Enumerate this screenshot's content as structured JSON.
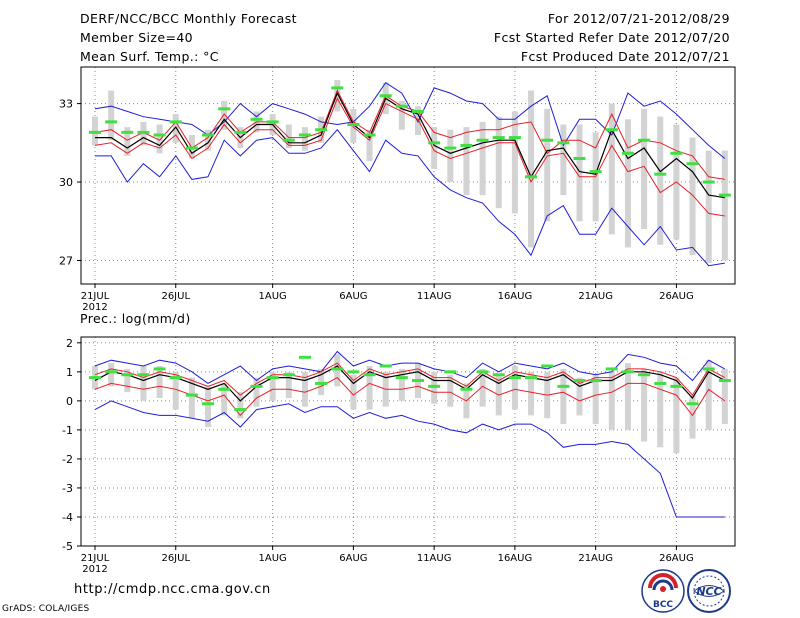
{
  "header": {
    "title": "DERF/NCC/BCC Monthly Forecast",
    "member_size": "Member Size=40",
    "variable": "Mean Surf. Temp.: °C",
    "period": "For 2012/07/21-2012/08/29",
    "fcst_started": "Fcst Started Refer Date 2012/07/20",
    "fcst_produced": "Fcst Produced Date 2012/07/21"
  },
  "footer": {
    "url": "http://cmdp.ncc.cma.gov.cn",
    "credit": "GrADS: COLA/IGES",
    "logo_bcc": "BCC",
    "logo_ncc": "NCC"
  },
  "colors": {
    "envelope": "#1f1fd6",
    "inner": "#e8202a",
    "mean": "#000000",
    "obs": "#3fe03f",
    "bar": "#d3d3d3",
    "grid": "#888888"
  },
  "chart_data": [
    {
      "type": "line",
      "title": "Mean Surf. Temp.: °C",
      "ylabel": "Mean Surf. Temp.: °C",
      "ylim": [
        26.1,
        34.4
      ],
      "yticks": [
        27,
        30,
        33
      ],
      "ytick_labels": [
        "27",
        "30",
        "33"
      ],
      "grid": true,
      "x_day_offsets": [
        0,
        5,
        11,
        16,
        21,
        26,
        31,
        36
      ],
      "x_tick_labels": [
        "21JUL",
        "26JUL",
        "1AUG",
        "6AUG",
        "11AUG",
        "16AUG",
        "21AUG",
        "26AUG"
      ],
      "x_year_label": "2012",
      "n_days": 39,
      "series": [
        {
          "name": "ensemble max",
          "color": "#1f1fd6",
          "values": [
            32.8,
            32.9,
            32.7,
            32.5,
            32.4,
            32.3,
            32.2,
            31.8,
            32.3,
            33.0,
            32.5,
            33.0,
            32.8,
            32.6,
            32.3,
            32.2,
            32.3,
            32.9,
            33.8,
            33.4,
            32.3,
            33.6,
            33.4,
            33.1,
            33.0,
            32.4,
            32.4,
            32.9,
            33.3,
            31.4,
            32.4,
            32.4,
            31.8,
            33.4,
            32.9,
            33.1,
            32.6,
            32.0,
            31.4,
            30.9
          ]
        },
        {
          "name": "inner upper",
          "color": "#e8202a",
          "values": [
            31.9,
            32.0,
            31.6,
            31.9,
            31.6,
            32.3,
            31.3,
            31.7,
            32.6,
            31.9,
            32.3,
            32.3,
            31.7,
            31.7,
            31.9,
            33.5,
            32.3,
            31.9,
            33.3,
            32.9,
            32.7,
            31.9,
            31.7,
            31.9,
            32.0,
            32.0,
            32.2,
            32.3,
            31.1,
            31.6,
            31.6,
            31.3,
            32.6,
            31.3,
            31.6,
            31.5,
            31.2,
            31.0,
            30.2,
            30.1
          ]
        },
        {
          "name": "ensemble mean",
          "color": "#000000",
          "values": [
            31.7,
            31.7,
            31.3,
            31.7,
            31.4,
            32.1,
            31.1,
            31.5,
            32.4,
            31.7,
            32.2,
            32.2,
            31.5,
            31.5,
            31.8,
            33.4,
            32.2,
            31.7,
            33.2,
            32.8,
            32.6,
            31.4,
            31.1,
            31.3,
            31.5,
            31.6,
            31.6,
            30.2,
            31.2,
            31.3,
            30.4,
            30.3,
            32.0,
            30.9,
            31.3,
            30.4,
            30.9,
            30.4,
            29.5,
            29.4
          ]
        },
        {
          "name": "inner lower",
          "color": "#e8202a",
          "values": [
            31.4,
            31.5,
            31.1,
            31.5,
            31.3,
            31.8,
            30.9,
            31.3,
            32.2,
            31.5,
            32.0,
            32.0,
            31.4,
            31.4,
            31.6,
            33.2,
            32.1,
            31.6,
            33.0,
            32.7,
            32.4,
            31.2,
            30.9,
            31.1,
            31.3,
            31.5,
            31.5,
            30.0,
            31.0,
            31.1,
            30.2,
            30.2,
            31.4,
            30.4,
            30.6,
            29.6,
            30.0,
            29.5,
            28.8,
            28.7
          ]
        },
        {
          "name": "ensemble min",
          "color": "#1f1fd6",
          "values": [
            31.0,
            31.0,
            30.0,
            30.7,
            30.2,
            31.0,
            30.1,
            30.2,
            31.6,
            31.0,
            31.6,
            31.7,
            31.1,
            31.1,
            31.3,
            32.0,
            31.2,
            30.4,
            31.6,
            31.1,
            31.0,
            30.2,
            29.7,
            29.4,
            29.2,
            28.5,
            28.0,
            27.2,
            28.7,
            29.1,
            28.0,
            28.0,
            29.0,
            28.3,
            27.6,
            28.3,
            27.4,
            27.5,
            26.8,
            26.9
          ]
        }
      ],
      "observed_values": [
        31.9,
        32.3,
        31.9,
        31.9,
        31.8,
        32.3,
        31.3,
        31.8,
        32.8,
        31.9,
        32.4,
        32.3,
        31.6,
        31.8,
        32.0,
        33.6,
        32.2,
        31.8,
        33.3,
        32.9,
        32.7,
        31.5,
        31.3,
        31.4,
        31.6,
        31.7,
        31.7,
        30.2,
        31.6,
        31.5,
        30.9,
        30.4,
        32.0,
        31.1,
        31.6,
        30.3,
        31.1,
        30.7,
        30.0,
        29.5
      ],
      "bar_ranges": [
        [
          31.4,
          32.5
        ],
        [
          31.6,
          33.5
        ],
        [
          31.0,
          32.1
        ],
        [
          31.4,
          32.3
        ],
        [
          31.1,
          32.2
        ],
        [
          31.5,
          32.6
        ],
        [
          30.9,
          31.8
        ],
        [
          31.2,
          32.0
        ],
        [
          32.0,
          33.1
        ],
        [
          31.3,
          32.1
        ],
        [
          31.9,
          32.7
        ],
        [
          31.8,
          32.6
        ],
        [
          31.3,
          32.2
        ],
        [
          31.2,
          32.1
        ],
        [
          31.5,
          32.5
        ],
        [
          32.7,
          33.9
        ],
        [
          31.5,
          32.8
        ],
        [
          30.8,
          32.0
        ],
        [
          32.6,
          33.8
        ],
        [
          32.0,
          33.1
        ],
        [
          31.8,
          32.9
        ],
        [
          30.5,
          32.1
        ],
        [
          30.0,
          32.0
        ],
        [
          29.5,
          32.1
        ],
        [
          29.5,
          32.3
        ],
        [
          29.0,
          32.5
        ],
        [
          28.8,
          32.7
        ],
        [
          27.5,
          33.5
        ],
        [
          28.5,
          32.8
        ],
        [
          29.5,
          32.2
        ],
        [
          28.5,
          32.2
        ],
        [
          28.5,
          31.9
        ],
        [
          28.0,
          33.0
        ],
        [
          27.5,
          32.4
        ],
        [
          28.2,
          32.8
        ],
        [
          27.6,
          32.5
        ],
        [
          27.8,
          32.2
        ],
        [
          27.2,
          31.7
        ],
        [
          26.9,
          31.2
        ],
        [
          27.0,
          31.2
        ]
      ]
    },
    {
      "type": "line",
      "title": "Prec.: log(mm/d)",
      "ylabel": "Prec.: log(mm/d)",
      "ylim": [
        -5.0,
        2.2
      ],
      "yticks": [
        -5,
        -4,
        -3,
        -2,
        -1,
        0,
        1,
        2
      ],
      "ytick_labels": [
        "-5",
        "-4",
        "-3",
        "-2",
        "-1",
        "0",
        "1",
        "2"
      ],
      "grid": true,
      "x_day_offsets": [
        0,
        5,
        11,
        16,
        21,
        26,
        31,
        36
      ],
      "x_tick_labels": [
        "21JUL",
        "26JUL",
        "1AUG",
        "6AUG",
        "11AUG",
        "16AUG",
        "21AUG",
        "26AUG"
      ],
      "x_year_label": "2012",
      "n_days": 39,
      "series": [
        {
          "name": "ensemble max",
          "color": "#1f1fd6",
          "values": [
            1.2,
            1.4,
            1.3,
            1.2,
            1.4,
            1.3,
            1.0,
            0.6,
            0.9,
            1.2,
            0.7,
            1.1,
            1.2,
            1.1,
            1.0,
            1.7,
            1.2,
            1.4,
            1.2,
            1.3,
            1.3,
            1.1,
            1.0,
            0.8,
            1.3,
            1.0,
            1.3,
            1.2,
            1.1,
            1.3,
            1.0,
            0.9,
            1.0,
            1.6,
            1.5,
            1.3,
            1.2,
            0.7,
            1.4,
            1.1
          ]
        },
        {
          "name": "inner upper",
          "color": "#e8202a",
          "values": [
            0.9,
            1.1,
            1.0,
            0.8,
            1.0,
            0.9,
            0.7,
            0.5,
            0.7,
            0.2,
            0.6,
            0.9,
            0.9,
            0.8,
            1.0,
            1.3,
            0.7,
            1.1,
            0.9,
            1.0,
            1.1,
            0.8,
            0.8,
            0.5,
            1.0,
            0.7,
            1.0,
            0.9,
            0.8,
            1.0,
            0.6,
            0.8,
            0.8,
            1.1,
            1.1,
            1.0,
            0.8,
            0.2,
            1.1,
            0.8
          ]
        },
        {
          "name": "ensemble mean",
          "color": "#000000",
          "values": [
            0.7,
            1.0,
            0.9,
            0.7,
            0.9,
            0.8,
            0.6,
            0.4,
            0.6,
            0.0,
            0.5,
            0.8,
            0.8,
            0.7,
            0.9,
            1.2,
            0.6,
            1.0,
            0.8,
            0.9,
            1.0,
            0.7,
            0.7,
            0.4,
            0.9,
            0.6,
            0.9,
            0.8,
            0.7,
            0.9,
            0.5,
            0.7,
            0.7,
            1.0,
            1.0,
            0.9,
            0.7,
            0.1,
            1.0,
            0.7
          ]
        },
        {
          "name": "inner lower",
          "color": "#e8202a",
          "values": [
            0.4,
            0.6,
            0.5,
            0.4,
            0.5,
            0.4,
            0.2,
            0.0,
            0.2,
            -0.5,
            0.1,
            0.4,
            0.4,
            0.3,
            0.5,
            0.8,
            0.2,
            0.6,
            0.4,
            0.4,
            0.5,
            0.3,
            0.3,
            0.0,
            0.5,
            0.2,
            0.4,
            0.3,
            0.2,
            0.3,
            0.0,
            0.2,
            0.3,
            0.6,
            0.6,
            0.4,
            0.2,
            -0.5,
            0.4,
            0.0
          ]
        },
        {
          "name": "ensemble min",
          "color": "#1f1fd6",
          "values": [
            -0.3,
            0.0,
            -0.2,
            -0.4,
            -0.5,
            -0.5,
            -0.6,
            -0.7,
            -0.4,
            -0.9,
            -0.3,
            -0.2,
            -0.1,
            -0.4,
            -0.2,
            -0.2,
            -0.6,
            -0.4,
            -0.6,
            -0.5,
            -0.7,
            -0.8,
            -1.0,
            -1.1,
            -0.8,
            -1.0,
            -0.8,
            -0.8,
            -1.1,
            -1.6,
            -1.5,
            -1.5,
            -1.4,
            -1.5,
            -2.0,
            -2.5,
            -4.0,
            -4.0,
            -4.0,
            -4.0
          ]
        }
      ],
      "observed_values": [
        0.8,
        1.0,
        0.9,
        0.9,
        1.1,
        0.8,
        0.2,
        -0.1,
        0.4,
        -0.3,
        0.5,
        0.8,
        0.9,
        1.5,
        0.6,
        1.1,
        1.0,
        0.9,
        1.2,
        0.8,
        0.7,
        0.5,
        1.0,
        0.4,
        1.0,
        0.9,
        0.8,
        0.8,
        1.2,
        0.5,
        0.7,
        0.7,
        1.1,
        1.0,
        0.9,
        0.6,
        0.5,
        -0.1,
        1.1,
        0.7
      ],
      "bar_ranges": [
        [
          0.4,
          1.2
        ],
        [
          0.5,
          1.3
        ],
        [
          0.3,
          1.1
        ],
        [
          0.0,
          1.2
        ],
        [
          0.1,
          1.2
        ],
        [
          -0.3,
          1.0
        ],
        [
          -0.6,
          0.8
        ],
        [
          -0.9,
          0.5
        ],
        [
          -0.5,
          0.6
        ],
        [
          -0.6,
          0.3
        ],
        [
          -0.2,
          0.8
        ],
        [
          0.0,
          1.0
        ],
        [
          0.1,
          1.0
        ],
        [
          -0.2,
          1.0
        ],
        [
          0.2,
          1.1
        ],
        [
          0.5,
          1.6
        ],
        [
          -0.3,
          0.9
        ],
        [
          -0.3,
          1.2
        ],
        [
          -0.2,
          1.0
        ],
        [
          0.0,
          1.1
        ],
        [
          0.1,
          1.3
        ],
        [
          -0.1,
          1.0
        ],
        [
          -0.2,
          0.9
        ],
        [
          -0.6,
          0.6
        ],
        [
          -0.2,
          1.1
        ],
        [
          -0.5,
          0.9
        ],
        [
          -0.3,
          1.2
        ],
        [
          -0.5,
          1.0
        ],
        [
          -0.6,
          1.0
        ],
        [
          -0.8,
          1.1
        ],
        [
          -0.5,
          0.8
        ],
        [
          -0.8,
          0.9
        ],
        [
          -1.0,
          1.0
        ],
        [
          -1.0,
          1.3
        ],
        [
          -1.4,
          1.1
        ],
        [
          -1.6,
          1.0
        ],
        [
          -1.8,
          0.8
        ],
        [
          -1.3,
          0.2
        ],
        [
          -1.0,
          1.4
        ],
        [
          -0.8,
          1.1
        ]
      ]
    }
  ]
}
